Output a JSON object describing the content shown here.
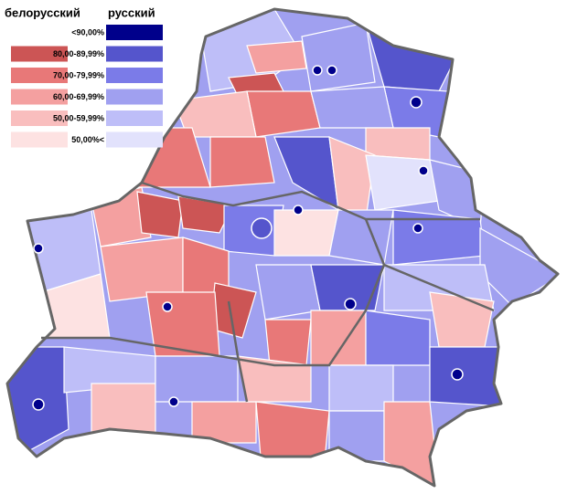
{
  "legend": {
    "title_left": "белорусский",
    "title_right": "русский",
    "rows": [
      {
        "label": "<90,00%",
        "russian_color": "#00008b"
      },
      {
        "label": "80,00-89,99%",
        "belarusian_color": "#cc5555",
        "russian_color": "#5555cc"
      },
      {
        "label": "70,00-79,99%",
        "belarusian_color": "#e87878",
        "russian_color": "#7b7be8"
      },
      {
        "label": "60,00-69,99%",
        "belarusian_color": "#f4a0a0",
        "russian_color": "#a0a0f0"
      },
      {
        "label": "50,00-59,99%",
        "belarusian_color": "#f9bebe",
        "russian_color": "#bebef8"
      },
      {
        "label": "50,00%<",
        "belarusian_color": "#fde2e2",
        "russian_color": "#e2e2fc"
      }
    ]
  }
}
